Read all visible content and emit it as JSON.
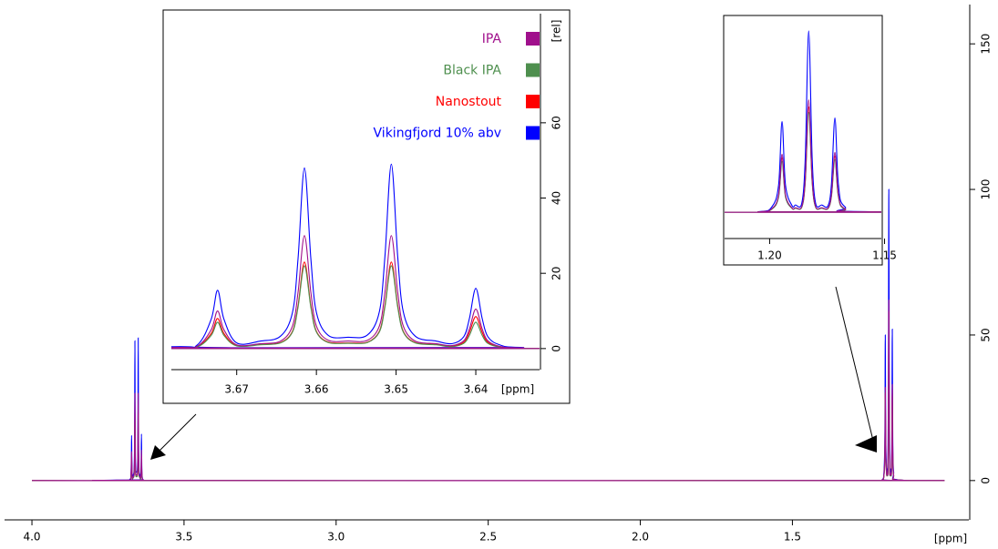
{
  "chart_data": [
    {
      "type": "line",
      "x": [
        4.0,
        3.7,
        3.678,
        3.675,
        3.6732,
        3.6724,
        3.6716,
        3.67,
        3.667,
        3.6645,
        3.663,
        3.6623,
        3.6615,
        3.6607,
        3.66,
        3.6585,
        3.656,
        3.6536,
        3.6521,
        3.6514,
        3.6506,
        3.6498,
        3.6491,
        3.6476,
        3.645,
        3.643,
        3.6415,
        3.6408,
        3.64,
        3.6392,
        3.6385,
        3.637,
        3.634,
        3.62,
        1.23,
        1.205,
        1.199,
        1.1961,
        1.1946,
        1.1931,
        1.1902,
        1.1888,
        1.186,
        1.1845,
        1.183,
        1.1815,
        1.18,
        1.1773,
        1.1746,
        1.1731,
        1.1716,
        1.1701,
        1.1672,
        1.155,
        1.0
      ],
      "series": [
        {
          "name": "IPA",
          "color": "#a0108c",
          "values": [
            0,
            0,
            0.3,
            0.6,
            5,
            10,
            5,
            1,
            1.3,
            2,
            6,
            15,
            30,
            15,
            6,
            2.2,
            2,
            2.2,
            6,
            15,
            30,
            15,
            6,
            2,
            1.3,
            0.8,
            2.1,
            5.2,
            10.5,
            5.2,
            2.1,
            0.6,
            0.2,
            0,
            0,
            0.2,
            2,
            9.6,
            32,
            9.6,
            2.3,
            2.5,
            3.2,
            18.6,
            62,
            18.6,
            3.2,
            2.5,
            2.3,
            9.9,
            33,
            9.9,
            2,
            0.2,
            0
          ]
        },
        {
          "name": "Black IPA",
          "color": "#4e8f4e",
          "values": [
            0,
            0,
            0.2,
            0.4,
            3.5,
            7,
            3.5,
            0.7,
            1,
            1.5,
            4.4,
            11,
            22,
            11,
            4.4,
            1.6,
            1.4,
            1.6,
            4.4,
            11,
            22,
            11,
            4.4,
            1.5,
            1,
            0.5,
            1.4,
            3.5,
            7,
            3.5,
            1.4,
            0.4,
            0.1,
            0,
            0,
            0.2,
            1.7,
            8.4,
            28,
            8.4,
            2,
            2.2,
            2.8,
            16.5,
            55,
            16.5,
            2.8,
            2.2,
            2,
            8.7,
            29,
            8.7,
            1.7,
            0.2,
            0
          ]
        },
        {
          "name": "Nanostout",
          "color": "#ff0000",
          "values": [
            0,
            0,
            0.2,
            0.5,
            4,
            8,
            4,
            0.8,
            1.1,
            1.6,
            4.6,
            11.5,
            23,
            11.5,
            4.6,
            1.7,
            1.5,
            1.7,
            4.6,
            11.5,
            23,
            11.5,
            4.6,
            1.6,
            1.1,
            0.6,
            1.7,
            4.3,
            8.5,
            4.3,
            1.7,
            0.5,
            0.1,
            0,
            0,
            0.2,
            1.8,
            9,
            30,
            9,
            2.1,
            2.3,
            3,
            17.4,
            58,
            17.4,
            3,
            2.3,
            2.1,
            9.3,
            31,
            9.3,
            1.8,
            0.2,
            0
          ]
        },
        {
          "name": "Vikingfjord 10% abv",
          "color": "#0000ff",
          "values": [
            0,
            0,
            0.5,
            0.9,
            7.8,
            15.5,
            7.8,
            1.5,
            2,
            3.3,
            9.6,
            24,
            48,
            24,
            9.6,
            3.5,
            3,
            3.6,
            9.8,
            24.5,
            49,
            24.5,
            9.8,
            3.3,
            2,
            1.3,
            3.2,
            8,
            16,
            8,
            3.2,
            1,
            0.3,
            0,
            0,
            0.3,
            3,
            15,
            50,
            15,
            3.5,
            4,
            5,
            30,
            100,
            30,
            5,
            4,
            3.5,
            15.6,
            52,
            15.6,
            3,
            0.3,
            0
          ]
        }
      ],
      "xlim": [
        4.09,
        0.92
      ],
      "ylim": [
        -13.5,
        163.5
      ],
      "xticks": [
        {
          "value": 4.0,
          "label": "4.0"
        },
        3.5,
        {
          "value": 3.0,
          "label": "3.0"
        },
        2.5,
        {
          "value": 2.0,
          "label": "2.0"
        },
        1.5
      ],
      "yticks": [
        0,
        50,
        100,
        150
      ],
      "x_label": "[ppm]"
    },
    {
      "type": "line",
      "xlim": [
        3.6782,
        3.632
      ],
      "ylim": [
        -5.6,
        89
      ],
      "xticks": [
        3.67,
        3.66,
        3.65,
        3.64
      ],
      "yticks": [
        0,
        20,
        40,
        60
      ],
      "x_label": "[ppm]",
      "y_label": "[rel]",
      "legend": "upper right"
    },
    {
      "type": "line",
      "xlim": [
        1.2196,
        1.1514
      ],
      "ylim": [
        -14.5,
        108
      ],
      "xticks": [
        {
          "value": 1.2,
          "label": "1.20"
        },
        1.15
      ]
    }
  ]
}
